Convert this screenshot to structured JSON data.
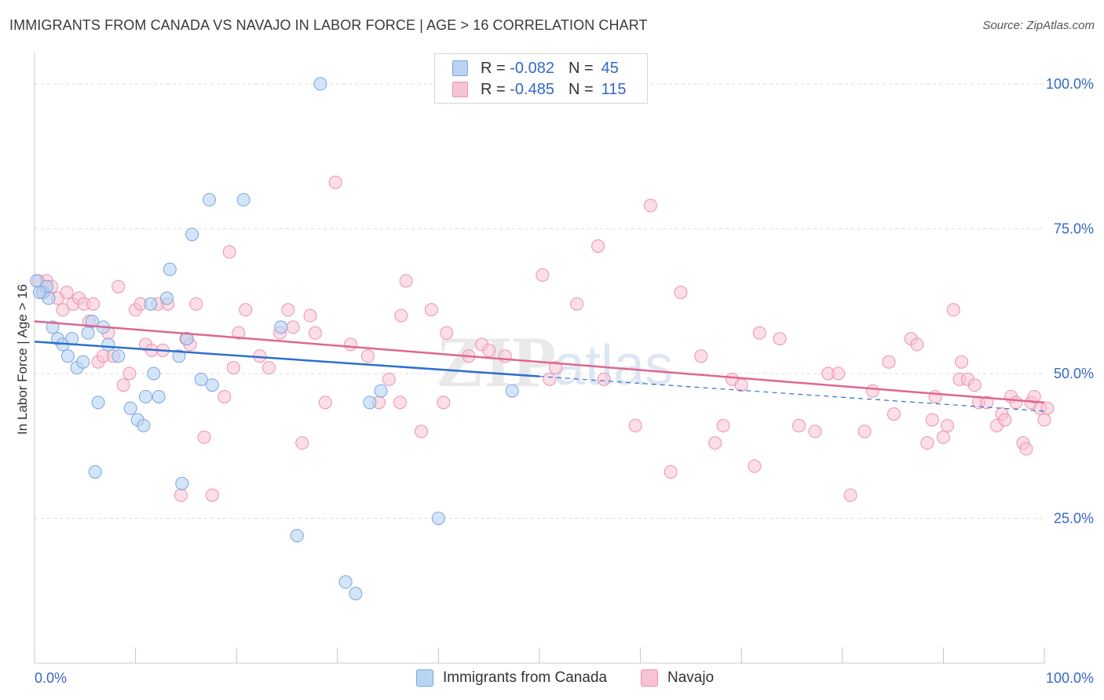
{
  "header": {
    "title": "IMMIGRANTS FROM CANADA VS NAVAJO IN LABOR FORCE | AGE > 16 CORRELATION CHART",
    "source": "Source: ZipAtlas.com"
  },
  "watermark": {
    "zip": "ZIP",
    "atlas": "atlas"
  },
  "colors": {
    "blue_fill": "#b9d3f3",
    "blue_stroke": "#7aa6de",
    "blue_line": "#2d6fcf",
    "pink_fill": "#f8c3d3",
    "pink_stroke": "#eb93ae",
    "pink_line": "#e0668f",
    "axis_label": "#3567c7",
    "grid": "#dcdcdc"
  },
  "legend": {
    "rows": [
      {
        "r_label": "R =",
        "r_value": "-0.082",
        "n_label": "N =",
        "n_value": "45"
      },
      {
        "r_label": "R =",
        "r_value": "-0.485",
        "n_label": "N =",
        "n_value": "115"
      }
    ]
  },
  "bottom_legend": {
    "series1": "Immigrants from Canada",
    "series2": "Navajo"
  },
  "chart_data": {
    "type": "scatter",
    "title": "IMMIGRANTS FROM CANADA VS NAVAJO IN LABOR FORCE | AGE > 16 CORRELATION CHART",
    "xlabel": "",
    "ylabel": "In Labor Force | Age > 16",
    "xlim": [
      0,
      100
    ],
    "ylim": [
      0,
      105
    ],
    "x_tick_labels": [
      "0.0%",
      "100.0%"
    ],
    "y_tick_labels": [
      "25.0%",
      "50.0%",
      "75.0%",
      "100.0%"
    ],
    "y_ticks": [
      25,
      50,
      75,
      100
    ],
    "grid": true,
    "legend_position": "top-center",
    "series": [
      {
        "name": "Immigrants from Canada",
        "color": "#7aa6de",
        "r": -0.082,
        "n": 45,
        "trend": {
          "x": [
            0,
            50
          ],
          "y": [
            55.5,
            49.5
          ]
        },
        "trend_dashed": {
          "x": [
            50,
            100
          ],
          "y": [
            49.5,
            43.5
          ]
        },
        "points": [
          [
            0.2,
            66
          ],
          [
            0.8,
            64
          ],
          [
            1.2,
            65
          ],
          [
            1.4,
            63
          ],
          [
            1.8,
            58
          ],
          [
            2.3,
            56
          ],
          [
            2.8,
            55
          ],
          [
            3.3,
            53
          ],
          [
            3.7,
            56
          ],
          [
            4.2,
            51
          ],
          [
            4.8,
            52
          ],
          [
            5.3,
            57
          ],
          [
            5.7,
            59
          ],
          [
            6.0,
            33
          ],
          [
            6.3,
            45
          ],
          [
            6.8,
            58
          ],
          [
            7.3,
            55
          ],
          [
            8.3,
            53
          ],
          [
            9.5,
            44
          ],
          [
            10.2,
            42
          ],
          [
            10.8,
            41
          ],
          [
            11.0,
            46
          ],
          [
            11.5,
            62
          ],
          [
            11.8,
            50
          ],
          [
            12.3,
            46
          ],
          [
            13.1,
            63
          ],
          [
            13.4,
            68
          ],
          [
            14.3,
            53
          ],
          [
            14.6,
            31
          ],
          [
            15.1,
            56
          ],
          [
            15.6,
            74
          ],
          [
            16.5,
            49
          ],
          [
            17.3,
            80
          ],
          [
            17.6,
            48
          ],
          [
            20.7,
            80
          ],
          [
            24.4,
            58
          ],
          [
            26.0,
            22
          ],
          [
            28.3,
            100
          ],
          [
            30.8,
            14
          ],
          [
            31.8,
            12
          ],
          [
            33.2,
            45
          ],
          [
            34.3,
            47
          ],
          [
            40.0,
            25
          ],
          [
            47.3,
            47
          ],
          [
            0.5,
            64
          ]
        ]
      },
      {
        "name": "Navajo",
        "color": "#eb93ae",
        "r": -0.485,
        "n": 115,
        "trend": {
          "x": [
            0,
            100
          ],
          "y": [
            59,
            45
          ]
        },
        "points": [
          [
            0.4,
            66
          ],
          [
            0.9,
            64
          ],
          [
            1.2,
            66
          ],
          [
            1.7,
            65
          ],
          [
            2.3,
            63
          ],
          [
            2.8,
            61
          ],
          [
            3.2,
            64
          ],
          [
            3.8,
            62
          ],
          [
            4.4,
            63
          ],
          [
            4.9,
            62
          ],
          [
            5.4,
            59
          ],
          [
            5.8,
            62
          ],
          [
            6.3,
            52
          ],
          [
            6.8,
            53
          ],
          [
            7.3,
            57
          ],
          [
            7.8,
            53
          ],
          [
            8.3,
            65
          ],
          [
            8.8,
            48
          ],
          [
            9.4,
            50
          ],
          [
            10.0,
            61
          ],
          [
            10.5,
            62
          ],
          [
            11.0,
            55
          ],
          [
            11.6,
            54
          ],
          [
            12.2,
            62
          ],
          [
            12.7,
            54
          ],
          [
            13.2,
            62
          ],
          [
            14.5,
            29
          ],
          [
            15.0,
            56
          ],
          [
            15.4,
            55
          ],
          [
            16.0,
            62
          ],
          [
            16.8,
            39
          ],
          [
            17.6,
            29
          ],
          [
            18.8,
            46
          ],
          [
            19.3,
            71
          ],
          [
            19.7,
            51
          ],
          [
            20.2,
            57
          ],
          [
            20.9,
            61
          ],
          [
            22.3,
            53
          ],
          [
            23.2,
            51
          ],
          [
            24.3,
            57
          ],
          [
            25.1,
            61
          ],
          [
            25.6,
            58
          ],
          [
            26.5,
            38
          ],
          [
            27.3,
            60
          ],
          [
            27.8,
            57
          ],
          [
            28.8,
            45
          ],
          [
            29.8,
            83
          ],
          [
            31.3,
            55
          ],
          [
            33.0,
            53
          ],
          [
            34.1,
            45
          ],
          [
            35.1,
            49
          ],
          [
            36.2,
            45
          ],
          [
            36.8,
            66
          ],
          [
            36.3,
            60
          ],
          [
            38.3,
            40
          ],
          [
            39.3,
            61
          ],
          [
            40.5,
            45
          ],
          [
            40.8,
            57
          ],
          [
            43.0,
            53
          ],
          [
            44.3,
            55
          ],
          [
            45.0,
            54
          ],
          [
            46.6,
            53
          ],
          [
            50.3,
            67
          ],
          [
            51.0,
            49
          ],
          [
            51.6,
            51
          ],
          [
            53.7,
            62
          ],
          [
            55.8,
            72
          ],
          [
            56.4,
            49
          ],
          [
            59.5,
            41
          ],
          [
            61.0,
            79
          ],
          [
            63.0,
            33
          ],
          [
            64.0,
            64
          ],
          [
            66.0,
            53
          ],
          [
            67.4,
            38
          ],
          [
            68.2,
            41
          ],
          [
            69.1,
            49
          ],
          [
            70.0,
            48
          ],
          [
            71.3,
            34
          ],
          [
            71.8,
            57
          ],
          [
            73.8,
            56
          ],
          [
            75.7,
            41
          ],
          [
            77.3,
            40
          ],
          [
            78.6,
            50
          ],
          [
            79.6,
            50
          ],
          [
            80.8,
            29
          ],
          [
            82.2,
            40
          ],
          [
            83.0,
            47
          ],
          [
            84.6,
            52
          ],
          [
            85.1,
            43
          ],
          [
            86.8,
            56
          ],
          [
            87.4,
            55
          ],
          [
            88.4,
            38
          ],
          [
            88.9,
            42
          ],
          [
            89.2,
            46
          ],
          [
            90.0,
            39
          ],
          [
            90.4,
            41
          ],
          [
            91.0,
            61
          ],
          [
            91.6,
            49
          ],
          [
            91.8,
            52
          ],
          [
            92.4,
            49
          ],
          [
            93.1,
            48
          ],
          [
            93.5,
            45
          ],
          [
            94.3,
            45
          ],
          [
            95.3,
            41
          ],
          [
            95.8,
            43
          ],
          [
            96.1,
            42
          ],
          [
            96.7,
            46
          ],
          [
            97.2,
            45
          ],
          [
            97.9,
            38
          ],
          [
            98.2,
            37
          ],
          [
            98.7,
            45
          ],
          [
            99.0,
            46
          ],
          [
            99.6,
            44
          ],
          [
            100.0,
            42
          ],
          [
            100.3,
            44
          ]
        ]
      }
    ]
  }
}
